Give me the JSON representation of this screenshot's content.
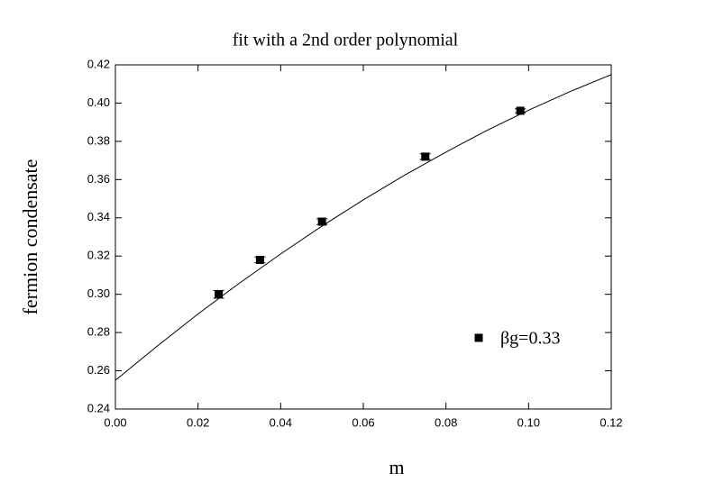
{
  "chart_data": {
    "type": "scatter",
    "title": "fit with a 2nd order polynomial",
    "x_label": "m",
    "y_label": "fermion condensate",
    "series": [
      {
        "name": "βg=0.33",
        "color": "#000000",
        "x": [
          0.025,
          0.035,
          0.05,
          0.075,
          0.098
        ],
        "values": [
          0.3,
          0.318,
          0.338,
          0.372,
          0.396
        ],
        "errors": [
          0.002,
          0.0015,
          0.0015,
          0.0015,
          0.001
        ]
      }
    ],
    "fit": {
      "color": "#000000",
      "x": [
        0,
        0.01,
        0.02,
        0.03,
        0.04,
        0.05,
        0.06,
        0.07,
        0.08,
        0.09,
        0.1,
        0.11,
        0.12
      ],
      "values": [
        0.255,
        0.2727,
        0.2897,
        0.3058,
        0.3211,
        0.3357,
        0.3494,
        0.3623,
        0.3744,
        0.3858,
        0.3963,
        0.406,
        0.4149
      ]
    },
    "xlim": [
      0,
      0.12
    ],
    "ylim": [
      0.24,
      0.42
    ],
    "xticks": [
      {
        "value": 0,
        "label": "0.00"
      },
      {
        "value": 0.02,
        "label": "0.02"
      },
      {
        "value": 0.04,
        "label": "0.04"
      },
      {
        "value": 0.06,
        "label": "0.06"
      },
      {
        "value": 0.08,
        "label": "0.08"
      },
      {
        "value": 0.1,
        "label": "0.10"
      },
      {
        "value": 0.12,
        "label": "0.12"
      }
    ],
    "yticks": [
      {
        "value": 0.24,
        "label": "0.24"
      },
      {
        "value": 0.26,
        "label": "0.26"
      },
      {
        "value": 0.28,
        "label": "0.28"
      },
      {
        "value": 0.3,
        "label": "0.30"
      },
      {
        "value": 0.32,
        "label": "0.32"
      },
      {
        "value": 0.34,
        "label": "0.34"
      },
      {
        "value": 0.36,
        "label": "0.36"
      },
      {
        "value": 0.38,
        "label": "0.38"
      },
      {
        "value": 0.4,
        "label": "0.40"
      },
      {
        "value": 0.42,
        "label": "0.42"
      }
    ],
    "grid": false,
    "legend": "lower right"
  }
}
